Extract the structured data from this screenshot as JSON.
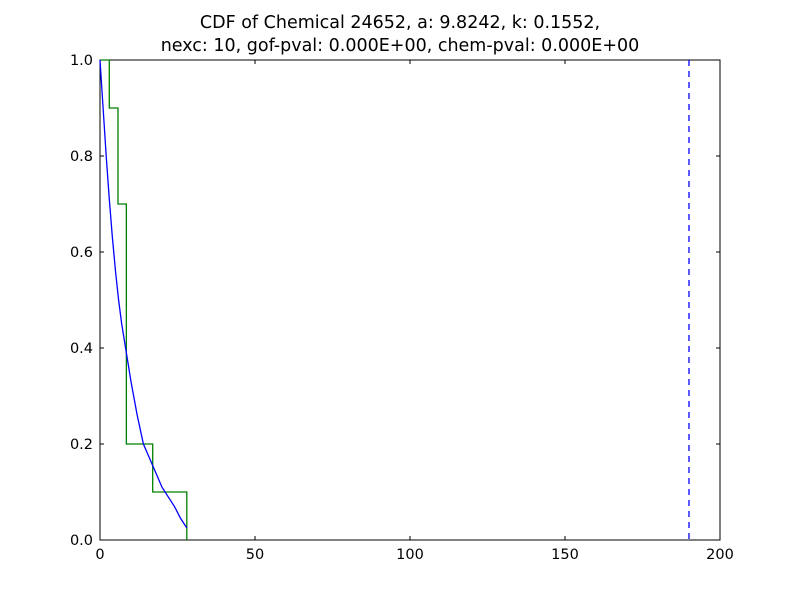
{
  "chart_data": {
    "type": "line",
    "title_lines": [
      "CDF of Chemical 24652, a: 9.8242, k: 0.1552,",
      "nexc: 10, gof-pval: 0.000E+00, chem-pval: 0.000E+00"
    ],
    "xlabel": "",
    "ylabel": "",
    "xlim": [
      0,
      200
    ],
    "ylim": [
      0.0,
      1.0
    ],
    "x_ticks": [
      0,
      50,
      100,
      150,
      200
    ],
    "x_tick_labels": [
      "0",
      "50",
      "100",
      "150",
      "200"
    ],
    "y_ticks": [
      0.0,
      0.2,
      0.4,
      0.6,
      0.8,
      1.0
    ],
    "y_tick_labels": [
      "0.0",
      "0.2",
      "0.4",
      "0.6",
      "0.8",
      "1.0"
    ],
    "grid": false,
    "series": [
      {
        "style": "step",
        "color": "#008000",
        "points": [
          [
            0.0,
            1.0
          ],
          [
            3.0,
            1.0
          ],
          [
            3.0,
            0.9
          ],
          [
            5.8,
            0.9
          ],
          [
            5.8,
            0.7
          ],
          [
            8.5,
            0.7
          ],
          [
            8.5,
            0.2
          ],
          [
            17.0,
            0.2
          ],
          [
            17.0,
            0.1
          ],
          [
            28.0,
            0.1
          ],
          [
            28.0,
            0.0
          ]
        ]
      },
      {
        "style": "solid",
        "color": "#0000ff",
        "points": [
          [
            0.0,
            1.0
          ],
          [
            1.0,
            0.9
          ],
          [
            2.0,
            0.8
          ],
          [
            3.0,
            0.71
          ],
          [
            4.0,
            0.63
          ],
          [
            5.0,
            0.56
          ],
          [
            6.0,
            0.5
          ],
          [
            7.0,
            0.45
          ],
          [
            8.0,
            0.41
          ],
          [
            10.0,
            0.33
          ],
          [
            12.0,
            0.26
          ],
          [
            14.0,
            0.2
          ],
          [
            16.0,
            0.17
          ],
          [
            18.0,
            0.14
          ],
          [
            20.0,
            0.11
          ],
          [
            22.0,
            0.09
          ],
          [
            24.0,
            0.07
          ],
          [
            26.0,
            0.045
          ],
          [
            28.0,
            0.025
          ]
        ]
      },
      {
        "style": "vline-dashed",
        "color": "#0000ff",
        "x": 190.0
      }
    ]
  }
}
